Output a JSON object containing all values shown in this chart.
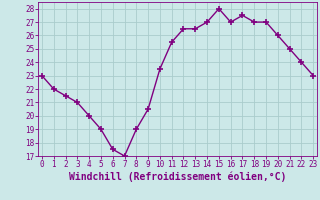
{
  "x": [
    0,
    1,
    2,
    3,
    4,
    5,
    6,
    7,
    8,
    9,
    10,
    11,
    12,
    13,
    14,
    15,
    16,
    17,
    18,
    19,
    20,
    21,
    22,
    23
  ],
  "y": [
    23.0,
    22.0,
    21.5,
    21.0,
    20.0,
    19.0,
    17.5,
    17.0,
    19.0,
    20.5,
    23.5,
    25.5,
    26.5,
    26.5,
    27.0,
    28.0,
    27.0,
    27.5,
    27.0,
    27.0,
    26.0,
    25.0,
    24.0,
    23.0
  ],
  "line_color": "#800080",
  "marker": "+",
  "marker_size": 4,
  "line_width": 1.0,
  "xlabel": "Windchill (Refroidissement éolien,°C)",
  "xlabel_fontsize": 7,
  "bg_color": "#cce8e8",
  "grid_color": "#aacccc",
  "ylim": [
    17,
    28.5
  ],
  "xlim": [
    -0.3,
    23.3
  ],
  "yticks": [
    17,
    18,
    19,
    20,
    21,
    22,
    23,
    24,
    25,
    26,
    27,
    28
  ],
  "xticks": [
    0,
    1,
    2,
    3,
    4,
    5,
    6,
    7,
    8,
    9,
    10,
    11,
    12,
    13,
    14,
    15,
    16,
    17,
    18,
    19,
    20,
    21,
    22,
    23
  ],
  "tick_fontsize": 5.5,
  "tick_color": "#800080",
  "axis_color": "#800080",
  "xlabel_color": "#800080"
}
